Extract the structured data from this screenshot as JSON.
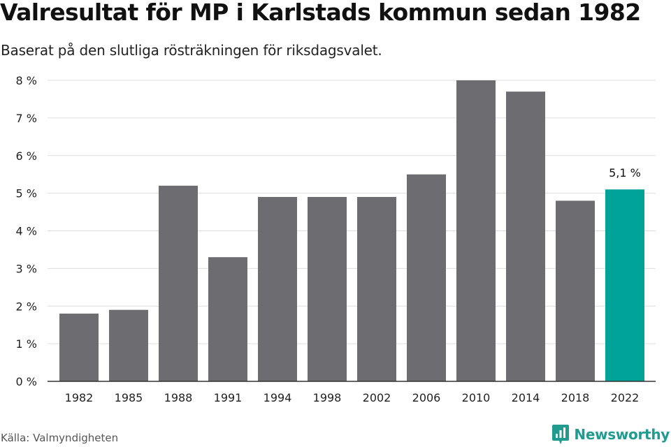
{
  "header": {
    "title": "Valresultat för MP i Karlstads kommun sedan 1982",
    "subtitle": "Baserat på den slutliga rösträkningen för riksdagsvalet."
  },
  "footer": {
    "source": "Källa: Valmyndigheten",
    "brand_name": "Newsworthy",
    "brand_icon": "newsworthy-logo-icon"
  },
  "colors": {
    "bar": "#6d6c71",
    "highlight": "#00a397",
    "grid": "#dddddd",
    "axis": "#333333",
    "brand": "#1f9c8f"
  },
  "chart_data": {
    "type": "bar",
    "categories": [
      "1982",
      "1985",
      "1988",
      "1991",
      "1994",
      "1998",
      "2002",
      "2006",
      "2010",
      "2014",
      "2018",
      "2022"
    ],
    "values": [
      1.8,
      1.9,
      5.2,
      3.3,
      4.9,
      4.9,
      4.9,
      5.5,
      8.0,
      7.7,
      4.8,
      5.1
    ],
    "title": "Valresultat för MP i Karlstads kommun sedan 1982",
    "subtitle": "Baserat på den slutliga rösträkningen för riksdagsvalet.",
    "xlabel": "",
    "ylabel": "",
    "ylim": [
      0,
      8
    ],
    "yticks": [
      0,
      1,
      2,
      3,
      4,
      5,
      6,
      7,
      8
    ],
    "ytick_labels": [
      "0 %",
      "1 %",
      "2 %",
      "3 %",
      "4 %",
      "5 %",
      "6 %",
      "7 %",
      "8 %"
    ],
    "grid": true,
    "legend": "none",
    "highlight_index": 11,
    "annotations": [
      {
        "category": "2022",
        "text": "5,1 %"
      }
    ]
  }
}
